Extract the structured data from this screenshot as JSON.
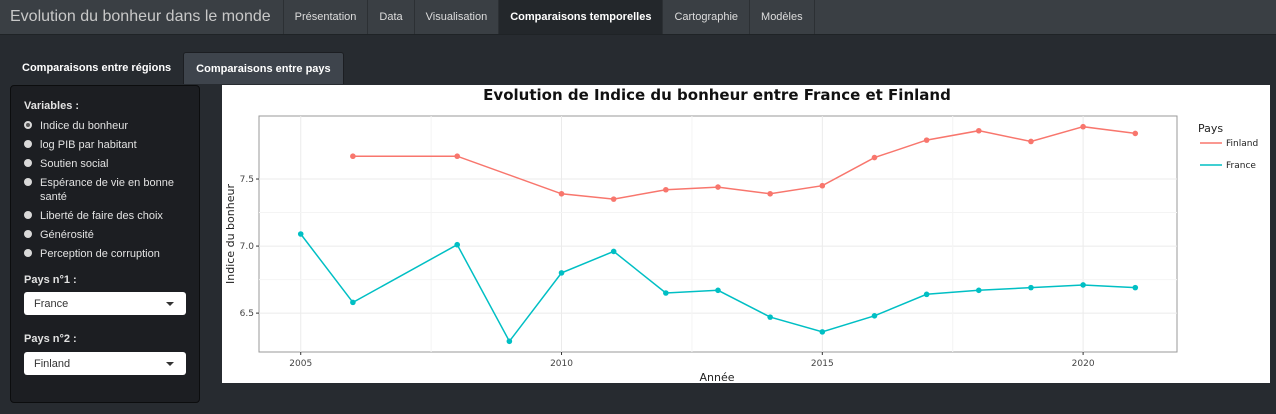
{
  "app": {
    "title": "Evolution du bonheur dans le monde"
  },
  "nav": {
    "tabs": [
      {
        "label": "Présentation"
      },
      {
        "label": "Data"
      },
      {
        "label": "Visualisation"
      },
      {
        "label": "Comparaisons temporelles"
      },
      {
        "label": "Cartographie"
      },
      {
        "label": "Modèles"
      }
    ]
  },
  "subtabs": [
    {
      "label": "Comparaisons entre régions"
    },
    {
      "label": "Comparaisons entre pays"
    }
  ],
  "sidebar": {
    "variables_label": "Variables :",
    "options": [
      {
        "label": "Indice du bonheur",
        "checked": true
      },
      {
        "label": "log PIB par habitant"
      },
      {
        "label": "Soutien social"
      },
      {
        "label": "Espérance de vie en bonne santé"
      },
      {
        "label": "Liberté de faire des choix"
      },
      {
        "label": "Générosité"
      },
      {
        "label": "Perception de corruption"
      }
    ],
    "pays1_label": "Pays n°1 :",
    "pays1_value": "France",
    "pays2_label": "Pays n°2 :",
    "pays2_value": "Finland"
  },
  "chart_data": {
    "type": "line",
    "title": "Evolution de Indice du bonheur entre France et Finland",
    "xlabel": "Année",
    "ylabel": "Indice du bonheur",
    "xlim": [
      2004.2,
      2021.8
    ],
    "ylim": [
      6.21,
      7.97
    ],
    "xticks": [
      2005,
      2010,
      2015,
      2020
    ],
    "yticks": [
      6.5,
      7.0,
      7.5
    ],
    "xtick_labels": [
      "2005",
      "2010",
      "2015",
      "2020"
    ],
    "ytick_labels": [
      "6.5",
      "7.0",
      "7.5"
    ],
    "grid": true,
    "legend": {
      "title": "Pays",
      "position": "right"
    },
    "series": [
      {
        "name": "Finland",
        "color": "#f8766d",
        "x": [
          2006,
          2008,
          2010,
          2011,
          2012,
          2013,
          2014,
          2015,
          2016,
          2017,
          2018,
          2019,
          2020,
          2021
        ],
        "y": [
          7.67,
          7.67,
          7.39,
          7.35,
          7.42,
          7.44,
          7.39,
          7.45,
          7.66,
          7.79,
          7.86,
          7.78,
          7.89,
          7.84
        ]
      },
      {
        "name": "France",
        "color": "#00bfc4",
        "x": [
          2005,
          2006,
          2008,
          2009,
          2010,
          2011,
          2012,
          2013,
          2014,
          2015,
          2016,
          2017,
          2018,
          2019,
          2020,
          2021
        ],
        "y": [
          7.09,
          6.58,
          7.01,
          6.29,
          6.8,
          6.96,
          6.65,
          6.67,
          6.47,
          6.36,
          6.48,
          6.64,
          6.67,
          6.69,
          6.71,
          6.69
        ]
      }
    ]
  }
}
